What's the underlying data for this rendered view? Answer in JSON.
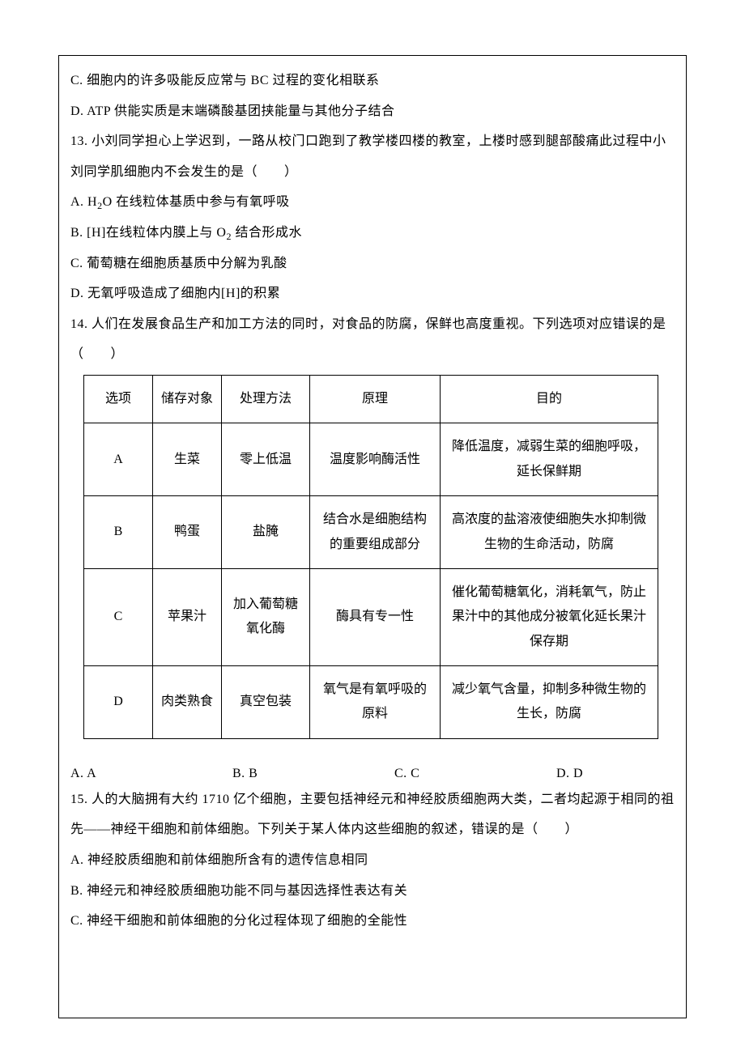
{
  "paragraphs": {
    "p1": "C.  细胞内的许多吸能反应常与 BC 过程的变化相联系",
    "p2": "D. ATP 供能实质是末端磷酸基团挟能量与其他分子结合",
    "q13": "13.  小刘同学担心上学迟到，一路从校门口跑到了教学楼四楼的教室，上楼时感到腿部酸痛此过程中小刘同学肌细胞内不会发生的是（　　）",
    "q13a_pre": "A. H",
    "q13a_sub": "2",
    "q13a_post": "O 在线粒体基质中参与有氧呼吸",
    "q13b_pre": "B. [H]在线粒体内膜上与 O",
    "q13b_sub": "2",
    "q13b_post": " 结合形成水",
    "q13c": "C.  葡萄糖在细胞质基质中分解为乳酸",
    "q13d": "D.  无氧呼吸造成了细胞内[H]的积累",
    "q14": "14.  人们在发展食品生产和加工方法的同时，对食品的防腐，保鲜也高度重视。下列选项对应错误的是（　　）",
    "q15": "15.  人的大脑拥有大约 1710 亿个细胞，主要包括神经元和神经胶质细胞两大类，二者均起源于相同的祖先——神经干细胞和前体细胞。下列关于某人体内这些细胞的叙述，错误的是（　　）",
    "q15a": "A.  神经胶质细胞和前体细胞所含有的遗传信息相同",
    "q15b": "B.  神经元和神经胶质细胞功能不同与基因选择性表达有关",
    "q15c": "C.  神经干细胞和前体细胞的分化过程体现了细胞的全能性"
  },
  "table": {
    "headers": {
      "c1": "选项",
      "c2": "储存对象",
      "c3": "处理方法",
      "c4": "原理",
      "c5": "目的"
    },
    "rows": [
      {
        "c1": "A",
        "c2": "生菜",
        "c3": "零上低温",
        "c4": "温度影响酶活性",
        "c5": "降低温度，减弱生菜的细胞呼吸，延长保鲜期"
      },
      {
        "c1": "B",
        "c2": "鸭蛋",
        "c3": "盐腌",
        "c4": "结合水是细胞结构的重要组成部分",
        "c5": "高浓度的盐溶液使细胞失水抑制微生物的生命活动，防腐"
      },
      {
        "c1": "C",
        "c2": "苹果汁",
        "c3": "加入葡萄糖氧化酶",
        "c4": "酶具有专一性",
        "c5": "催化葡萄糖氧化，消耗氧气，防止果汁中的其他成分被氧化延长果汁保存期"
      },
      {
        "c1": "D",
        "c2": "肉类熟食",
        "c3": "真空包装",
        "c4": "氧气是有氧呼吸的原料",
        "c5": "减少氧气含量，抑制多种微生物的生长，防腐"
      }
    ]
  },
  "answers": {
    "a": "A. A",
    "b": "B. B",
    "c": "C. C",
    "d": "D. D"
  }
}
